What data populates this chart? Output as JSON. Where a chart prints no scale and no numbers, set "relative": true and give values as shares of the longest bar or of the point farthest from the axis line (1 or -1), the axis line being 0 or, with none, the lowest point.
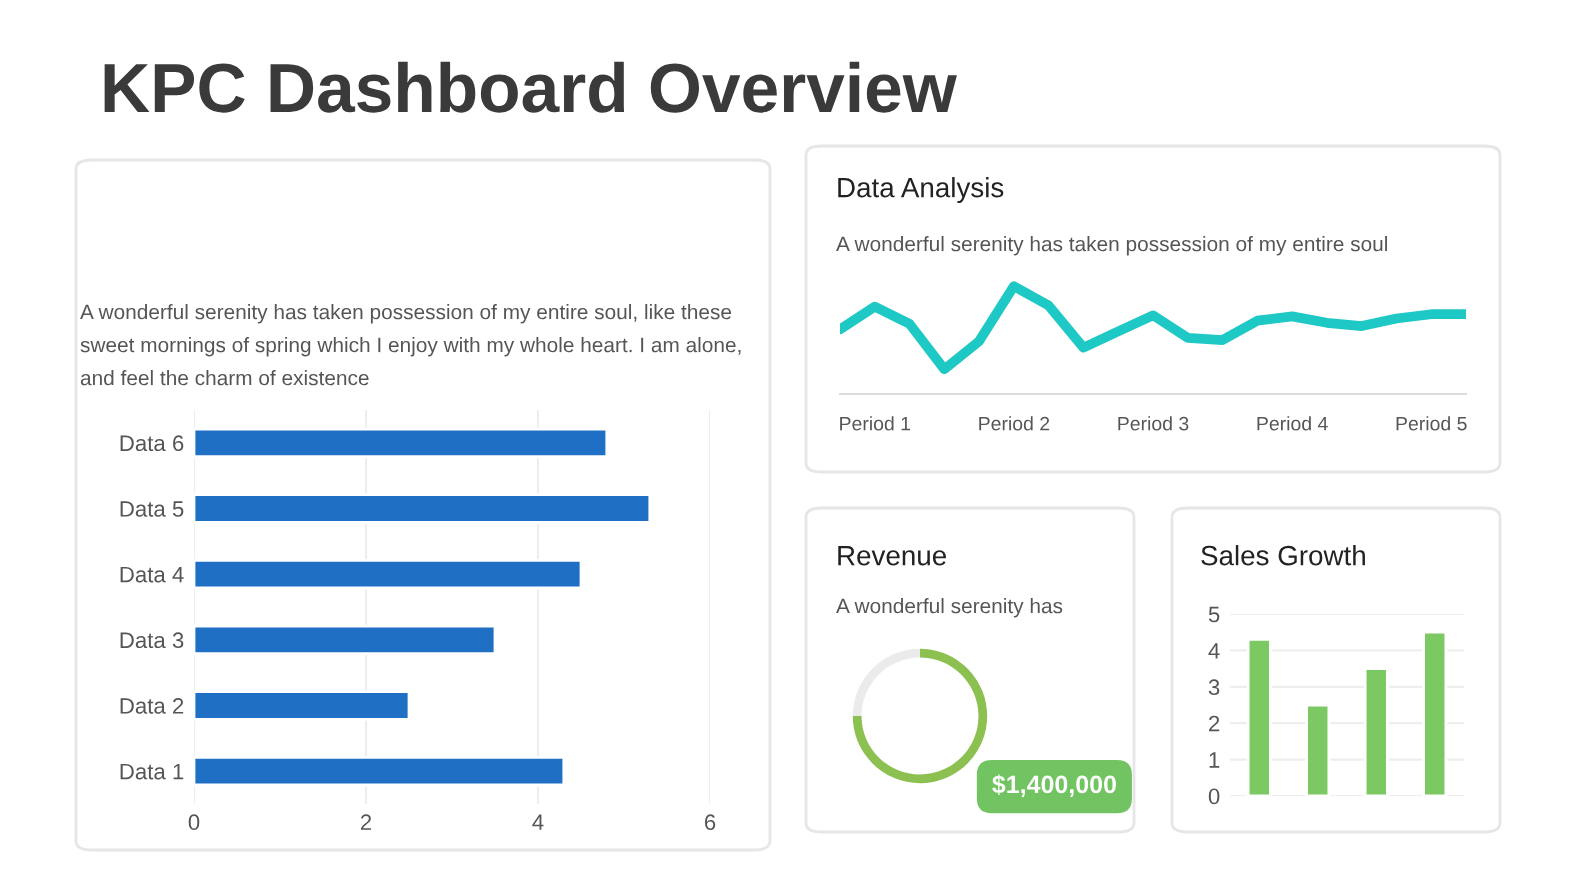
{
  "chart_data": [
    {
      "type": "bar",
      "title": "KPC Dashboard Overview",
      "subtitle": "A wonderful serenity has taken possession of my entire soul, like these sweet mornings of spring which I enjoy with my whole heart. I am alone, and feel the charm of existence",
      "orientation": "horizontal",
      "categories": [
        "Data 6",
        "Data 5",
        "Data 4",
        "Data 3",
        "Data 2",
        "Data 1"
      ],
      "values": [
        4.8,
        5.3,
        4.5,
        3.5,
        2.5,
        4.3
      ],
      "color": "#1f6fc5",
      "xlim": [
        0,
        6
      ],
      "xticks": [
        0,
        2,
        4,
        6
      ],
      "grid": "x"
    },
    {
      "type": "line",
      "title": "Data Analysis",
      "subtitle": "A wonderful serenity has taken possession of my entire soul",
      "relative": true,
      "categories": [
        null,
        "Period 1",
        null,
        null,
        null,
        "Period 2",
        null,
        null,
        null,
        "Period 3",
        null,
        null,
        null,
        "Period 4",
        null,
        null,
        null,
        "Period 5",
        null
      ],
      "series": [
        {
          "color": "#1ec8c4",
          "values": [
            0.6,
            0.81,
            0.65,
            0.23,
            0.49,
            1.0,
            0.82,
            0.43,
            0.58,
            0.73,
            0.52,
            0.5,
            0.68,
            0.72,
            0.66,
            0.63,
            0.7,
            0.74,
            0.74
          ]
        }
      ],
      "tick_labels": "x"
    },
    {
      "type": "donut",
      "title": "Revenue",
      "subtitle": "A wonderful serenity has",
      "categories": [
        null,
        null
      ],
      "values": [
        75,
        25
      ],
      "colors": [
        "#8cc152",
        "#ebebeb"
      ],
      "annotations": [
        "$1,400,000"
      ]
    },
    {
      "type": "bar",
      "title": "Sales Growth",
      "categories": [
        null,
        null,
        null,
        null
      ],
      "values": [
        4.3,
        2.5,
        3.5,
        4.5
      ],
      "color": "#7cc862",
      "ylim": [
        0,
        5
      ],
      "yticks": [
        0,
        1,
        2,
        3,
        4,
        5
      ],
      "grid": "y",
      "tick_labels": "y"
    }
  ]
}
